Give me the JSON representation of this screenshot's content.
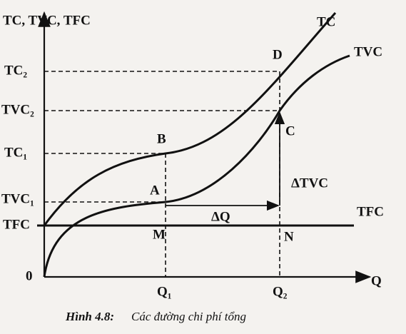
{
  "axes": {
    "y_label": "TC, TVC, TFC",
    "x_label": "Q",
    "origin": "0"
  },
  "curves": {
    "tc": "TC",
    "tvc": "TVC",
    "tfc": "TFC"
  },
  "y_labels": {
    "tc2": "TC₂",
    "tvc2": "TVC₂",
    "tc1": "TC₁",
    "tvc1": "TVC₁",
    "tfc": "TFC"
  },
  "x_labels": {
    "q1": "Q₁",
    "q2": "Q₂"
  },
  "points": {
    "a": "A",
    "b": "B",
    "c": "C",
    "d": "D",
    "m": "M",
    "n": "N"
  },
  "annotations": {
    "delta_tvc": "ΔTVC",
    "delta_q": "ΔQ"
  },
  "caption": {
    "number": "Hình 4.8:",
    "text": "Các đường chi phí tổng"
  }
}
